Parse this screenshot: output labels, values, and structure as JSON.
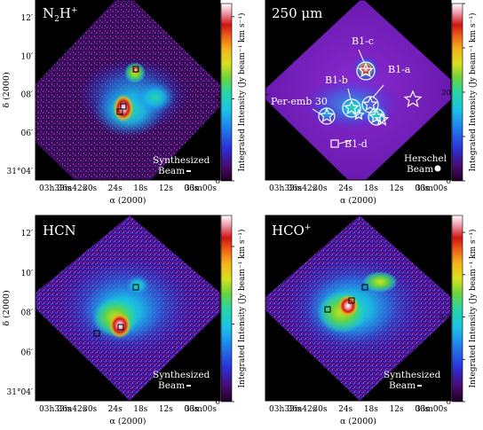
{
  "figure": {
    "colorbar_label": "Integrated Intensity (Jy beam",
    "colorbar_label_tail": " km s",
    "dec_label": "δ (2000)",
    "ra_label": "α (2000)"
  },
  "axes": {
    "ra_ticks": [
      "03h33m42s",
      "36s",
      "30s",
      "24s",
      "18s",
      "12s",
      "06s",
      "33m00s"
    ],
    "dec_ticks": [
      "31°04′",
      "06′",
      "08′",
      "10′",
      "12′"
    ]
  },
  "panels": [
    {
      "id": "n2h",
      "title": "N2H+",
      "beam_text": [
        "Synthesized",
        "Beam"
      ],
      "cbar_ticks": [
        "0",
        "5",
        "10"
      ],
      "cbar_max": 10.8,
      "show_dec_label": true,
      "show_ra_label": true
    },
    {
      "id": "250um",
      "title": "250 μm",
      "beam_text": [
        "Herschel",
        "Beam"
      ],
      "cbar_ticks": [
        "0",
        "10",
        "20",
        "30",
        "40"
      ],
      "cbar_max": 40,
      "sources": [
        "B1-c",
        "B1-b",
        "B1-a",
        "Per-emb 30",
        "B1-d"
      ],
      "show_dec_label": false,
      "show_ra_label": true
    },
    {
      "id": "hcn",
      "title": "HCN",
      "beam_text": [
        "Synthesized",
        "Beam"
      ],
      "cbar_ticks": [
        "0",
        "1",
        "2"
      ],
      "cbar_max": 2.4,
      "show_dec_label": true,
      "show_ra_label": true
    },
    {
      "id": "hcop",
      "title": "HCO+",
      "beam_text": [
        "Synthesized",
        "Beam"
      ],
      "cbar_ticks": [
        "0",
        "0.2",
        "0.4",
        "0.6",
        "0.8"
      ],
      "cbar_max": 0.88,
      "show_dec_label": false,
      "show_ra_label": true
    }
  ],
  "colors": {
    "cmap": [
      "#1a0022",
      "#4a0a6e",
      "#2b2fd6",
      "#1f7ff0",
      "#19c3e6",
      "#27d6a6",
      "#6ad43c",
      "#d8e020",
      "#f5b51a",
      "#ee5c18",
      "#d01414",
      "#f0a0b0",
      "#ffffff"
    ]
  }
}
